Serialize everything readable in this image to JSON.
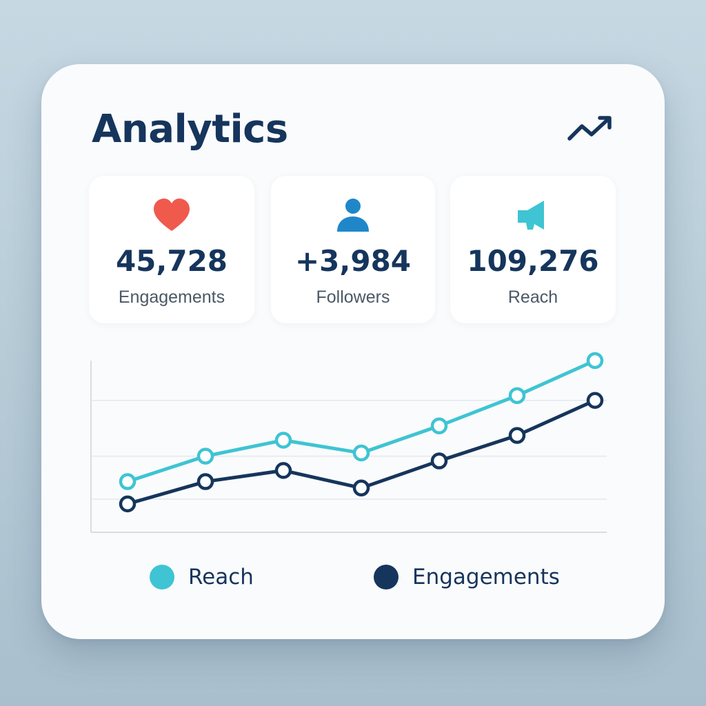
{
  "header": {
    "title": "Analytics",
    "trend_icon": "trending-up-icon"
  },
  "stats": [
    {
      "icon": "heart-icon",
      "value": "45,728",
      "label": "Engagements",
      "color": "#ef5a4d"
    },
    {
      "icon": "user-icon",
      "value": "+3,984",
      "label": "Followers",
      "color": "#1f87c9"
    },
    {
      "icon": "megaphone-icon",
      "value": "109,276",
      "label": "Reach",
      "color": "#3ec4d3"
    }
  ],
  "chart_data": {
    "type": "line",
    "x": [
      1,
      2,
      3,
      4,
      5,
      6,
      7
    ],
    "ylim": [
      0,
      100
    ],
    "grid": true,
    "legend": "bottom",
    "series": [
      {
        "name": "Reach",
        "color": "#3ec4d3",
        "values": [
          24,
          40,
          50,
          42,
          59,
          78,
          100
        ]
      },
      {
        "name": "Engagements",
        "color": "#16355c",
        "values": [
          10,
          24,
          31,
          20,
          37,
          53,
          75
        ]
      }
    ]
  },
  "legend": [
    {
      "label": "Reach",
      "color": "#3ec4d3"
    },
    {
      "label": "Engagements",
      "color": "#16355c"
    }
  ]
}
